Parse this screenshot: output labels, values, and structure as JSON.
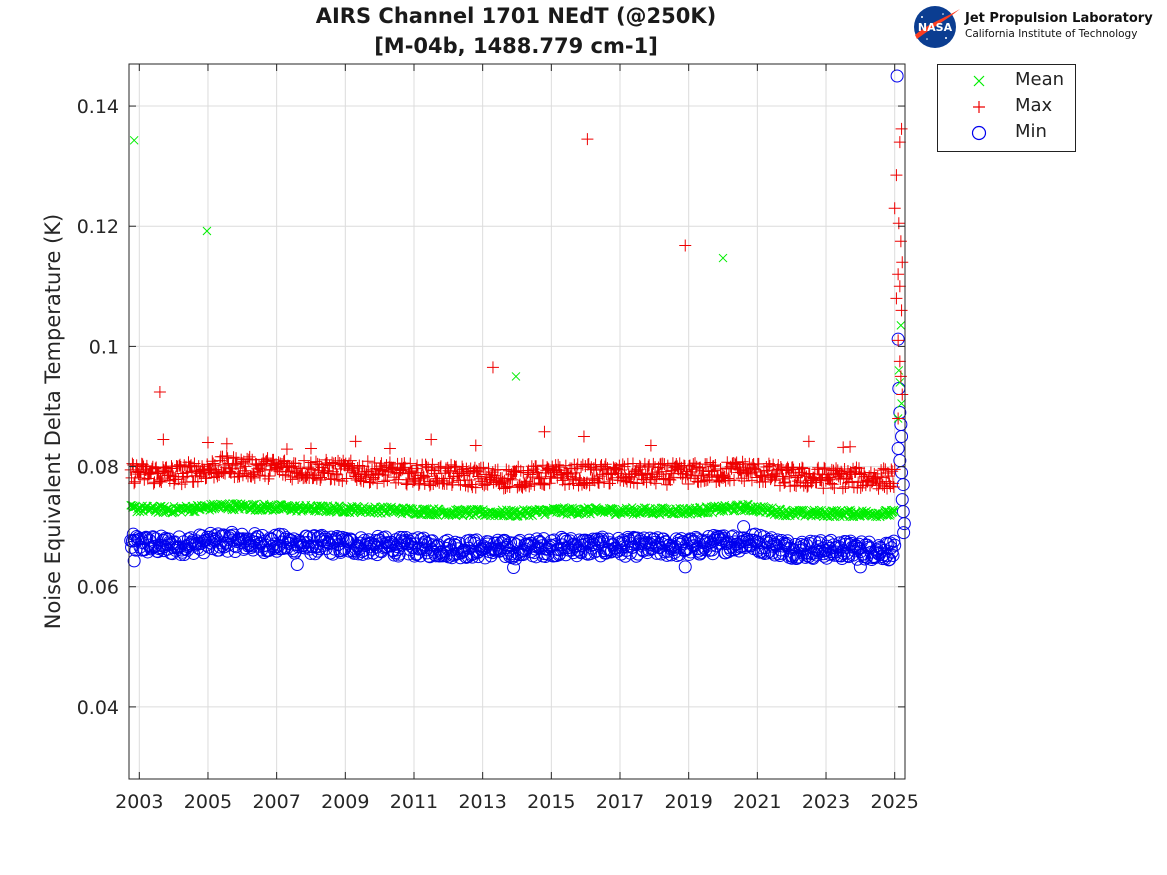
{
  "chart_data": {
    "type": "scatter",
    "title": [
      "AIRS Channel 1701 NEdT (@250K)",
      "[M-04b, 1488.779 cm-1]"
    ],
    "xlabel": "",
    "ylabel": "Noise Equivalent Delta Temperature (K)",
    "xlim": [
      2002.7,
      2025.3
    ],
    "ylim": [
      0.028,
      0.147
    ],
    "xticks": [
      2003,
      2005,
      2007,
      2009,
      2011,
      2013,
      2015,
      2017,
      2019,
      2021,
      2023,
      2025
    ],
    "yticks": [
      0.04,
      0.06,
      0.08,
      0.1,
      0.12,
      0.14
    ],
    "yticklabels": [
      "0.04",
      "0.06",
      "0.08",
      "0.1",
      "0.12",
      "0.14"
    ],
    "grid": true,
    "legend_position": "outside-top-right",
    "series": [
      {
        "name": "Mean",
        "marker": "x",
        "color": "#00ee00",
        "baseline": [
          [
            2002.7,
            0.073
          ],
          [
            2004.0,
            0.0728
          ],
          [
            2005.5,
            0.0734
          ],
          [
            2008.0,
            0.073
          ],
          [
            2010.0,
            0.0728
          ],
          [
            2012.0,
            0.0724
          ],
          [
            2014.0,
            0.0722
          ],
          [
            2015.0,
            0.0726
          ],
          [
            2019.0,
            0.0726
          ],
          [
            2020.7,
            0.0732
          ],
          [
            2022.0,
            0.0722
          ],
          [
            2025.0,
            0.0722
          ]
        ],
        "spread": 0.0006,
        "outliers": [
          [
            2002.85,
            0.1343
          ],
          [
            2004.97,
            0.1192
          ],
          [
            2013.97,
            0.095
          ],
          [
            2020.0,
            0.1147
          ],
          [
            2025.18,
            0.1035
          ],
          [
            2025.12,
            0.096
          ],
          [
            2025.15,
            0.094
          ],
          [
            2025.2,
            0.0905
          ],
          [
            2025.1,
            0.088
          ]
        ]
      },
      {
        "name": "Max",
        "marker": "+",
        "color": "#ee0000",
        "baseline": [
          [
            2002.7,
            0.079
          ],
          [
            2004.0,
            0.0786
          ],
          [
            2005.5,
            0.08
          ],
          [
            2008.0,
            0.0795
          ],
          [
            2010.0,
            0.079
          ],
          [
            2012.0,
            0.0785
          ],
          [
            2013.5,
            0.078
          ],
          [
            2015.0,
            0.0786
          ],
          [
            2019.0,
            0.0788
          ],
          [
            2020.7,
            0.0793
          ],
          [
            2022.0,
            0.0782
          ],
          [
            2025.0,
            0.078
          ]
        ],
        "spread": 0.0018,
        "outliers": [
          [
            2003.6,
            0.0924
          ],
          [
            2003.7,
            0.0845
          ],
          [
            2005.0,
            0.084
          ],
          [
            2005.55,
            0.0838
          ],
          [
            2007.3,
            0.0829
          ],
          [
            2008.0,
            0.083
          ],
          [
            2009.3,
            0.0842
          ],
          [
            2010.3,
            0.083
          ],
          [
            2011.5,
            0.0845
          ],
          [
            2012.8,
            0.0835
          ],
          [
            2013.3,
            0.0965
          ],
          [
            2014.8,
            0.0858
          ],
          [
            2015.95,
            0.085
          ],
          [
            2016.05,
            0.1345
          ],
          [
            2017.9,
            0.0835
          ],
          [
            2018.9,
            0.1168
          ],
          [
            2022.5,
            0.0842
          ],
          [
            2023.5,
            0.0832
          ],
          [
            2023.7,
            0.0833
          ],
          [
            2025.2,
            0.1362
          ],
          [
            2025.15,
            0.134
          ],
          [
            2025.05,
            0.1285
          ],
          [
            2025.0,
            0.123
          ],
          [
            2025.12,
            0.1205
          ],
          [
            2025.18,
            0.1175
          ],
          [
            2025.22,
            0.114
          ],
          [
            2025.1,
            0.112
          ],
          [
            2025.15,
            0.11
          ],
          [
            2025.05,
            0.108
          ],
          [
            2025.2,
            0.106
          ],
          [
            2025.1,
            0.101
          ],
          [
            2025.15,
            0.0975
          ],
          [
            2025.18,
            0.095
          ],
          [
            2025.22,
            0.092
          ],
          [
            2025.1,
            0.088
          ]
        ]
      },
      {
        "name": "Min",
        "marker": "o",
        "color": "#0000ee",
        "baseline": [
          [
            2002.7,
            0.0672
          ],
          [
            2004.0,
            0.0668
          ],
          [
            2005.5,
            0.0675
          ],
          [
            2008.0,
            0.067
          ],
          [
            2010.0,
            0.0668
          ],
          [
            2012.0,
            0.0664
          ],
          [
            2014.0,
            0.0662
          ],
          [
            2015.0,
            0.0667
          ],
          [
            2019.0,
            0.0666
          ],
          [
            2020.7,
            0.0676
          ],
          [
            2022.0,
            0.0663
          ],
          [
            2025.0,
            0.066
          ]
        ],
        "spread": 0.0016,
        "outliers": [
          [
            2002.85,
            0.0643
          ],
          [
            2007.6,
            0.0637
          ],
          [
            2013.9,
            0.0632
          ],
          [
            2018.9,
            0.0633
          ],
          [
            2020.6,
            0.07
          ],
          [
            2024.0,
            0.0633
          ],
          [
            2025.07,
            0.145
          ],
          [
            2025.1,
            0.1012
          ],
          [
            2025.12,
            0.093
          ],
          [
            2025.15,
            0.089
          ],
          [
            2025.18,
            0.087
          ],
          [
            2025.2,
            0.085
          ],
          [
            2025.1,
            0.083
          ],
          [
            2025.15,
            0.081
          ],
          [
            2025.2,
            0.079
          ],
          [
            2025.25,
            0.077
          ],
          [
            2025.22,
            0.0745
          ],
          [
            2025.25,
            0.0725
          ],
          [
            2025.28,
            0.0705
          ],
          [
            2025.26,
            0.069
          ]
        ]
      }
    ]
  },
  "logo": {
    "nasa_text": "NASA",
    "org_name": "Jet Propulsion Laboratory",
    "org_sub": "California Institute of Technology"
  }
}
